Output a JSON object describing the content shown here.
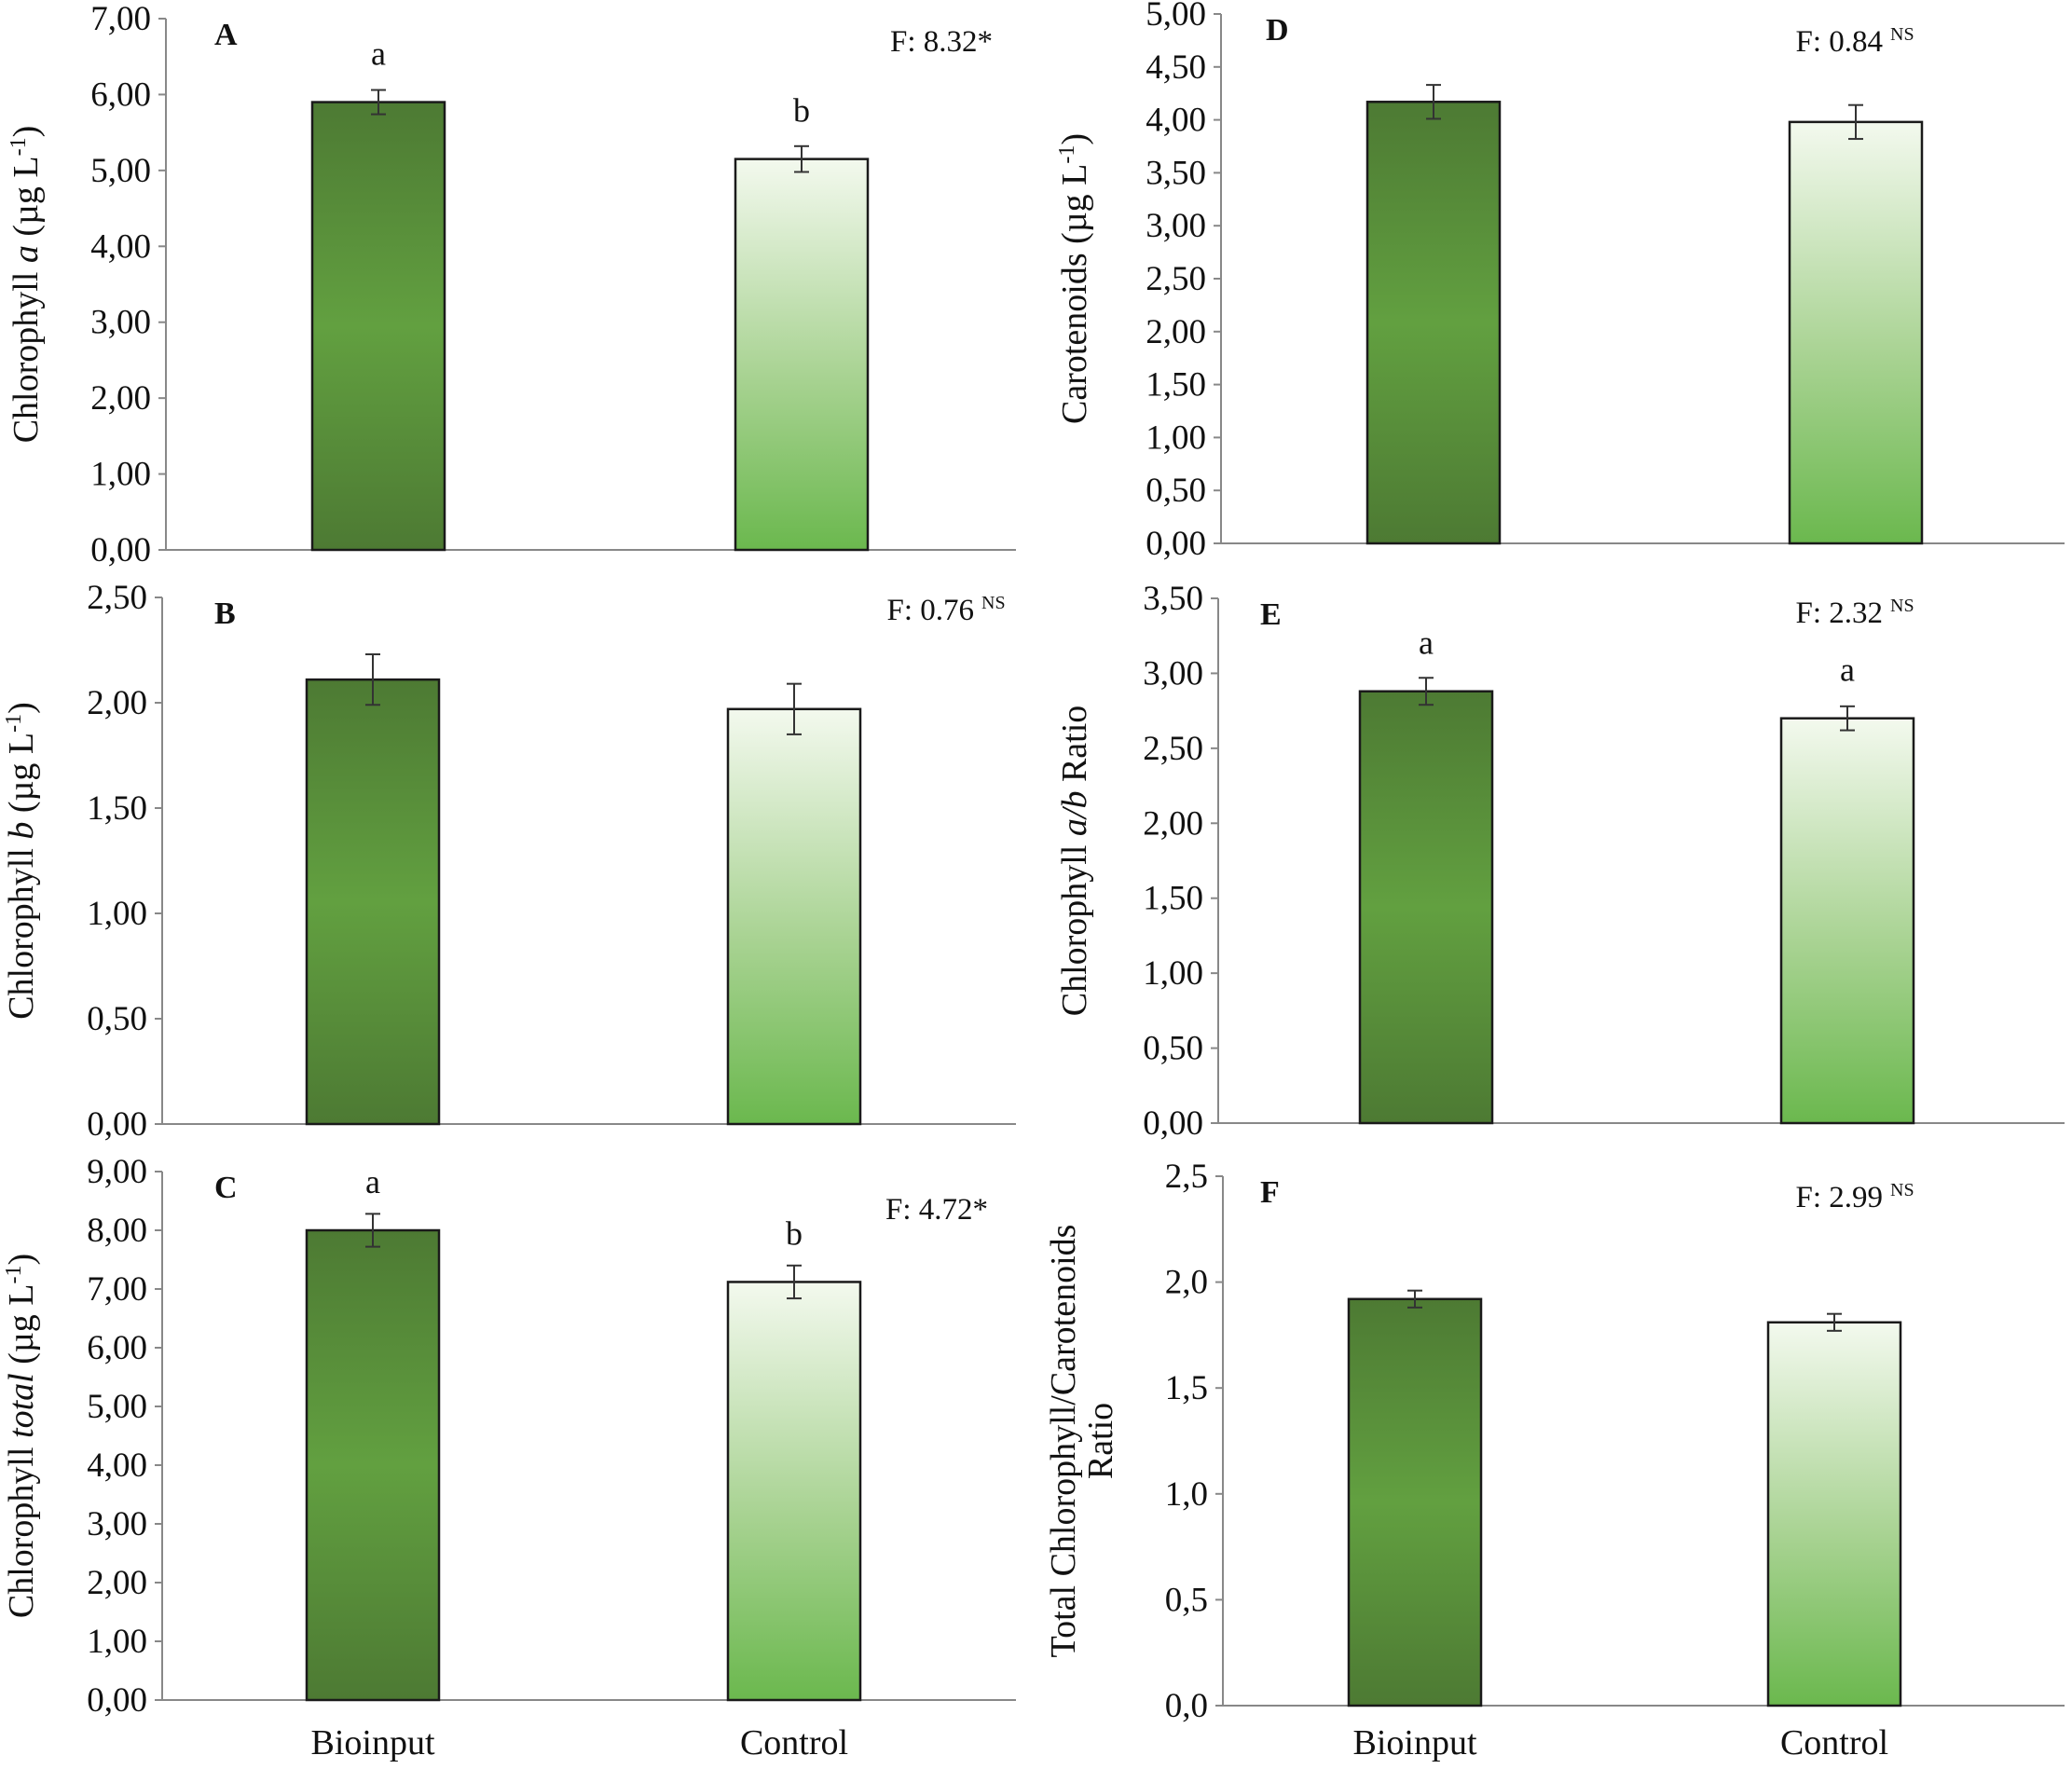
{
  "figure": {
    "categories": [
      "Bioinput",
      "Control"
    ],
    "colors": {
      "bioinput_gradient": [
        "#4d7a33",
        "#62a040",
        "#4d7a33"
      ],
      "control_gradient": [
        "#f3f9ee",
        "#a9d393",
        "#6bb84e"
      ],
      "bar_stroke": "#1a1a1a",
      "axis": "#888888"
    }
  },
  "chart_data": [
    {
      "id": "A",
      "type": "bar",
      "panel_label": "A",
      "ylabel_parts": [
        "Chlorophyll ",
        "a",
        " (µg L",
        "-1",
        ")"
      ],
      "yticks": [
        "0,00",
        "1,00",
        "2,00",
        "3,00",
        "4,00",
        "5,00",
        "6,00",
        "7,00"
      ],
      "ylim": [
        0,
        7
      ],
      "categories": [
        "Bioinput",
        "Control"
      ],
      "values": [
        5.9,
        5.15
      ],
      "errors": [
        0.16,
        0.17
      ],
      "letters": [
        "a",
        "b"
      ],
      "stat_text": "F: 8.32*",
      "stat_sup": ""
    },
    {
      "id": "B",
      "type": "bar",
      "panel_label": "B",
      "ylabel_parts": [
        "Chlorophyll ",
        "b",
        " (µg L",
        "-1",
        ")"
      ],
      "yticks": [
        "0,00",
        "0,50",
        "1,00",
        "1,50",
        "2,00",
        "2,50"
      ],
      "ylim": [
        0,
        2.5
      ],
      "categories": [
        "Bioinput",
        "Control"
      ],
      "values": [
        2.11,
        1.97
      ],
      "errors": [
        0.12,
        0.12
      ],
      "letters": [
        "",
        ""
      ],
      "stat_text": "F: 0.76",
      "stat_sup": "NS"
    },
    {
      "id": "C",
      "type": "bar",
      "panel_label": "C",
      "ylabel_parts": [
        "Chlorophyll ",
        "total",
        " (µg L",
        "-1",
        ")"
      ],
      "yticks": [
        "0,00",
        "1,00",
        "2,00",
        "3,00",
        "4,00",
        "5,00",
        "6,00",
        "7,00",
        "8,00",
        "9,00"
      ],
      "ylim": [
        0,
        9
      ],
      "categories": [
        "Bioinput",
        "Control"
      ],
      "values": [
        8.0,
        7.12
      ],
      "errors": [
        0.28,
        0.28
      ],
      "letters": [
        "a",
        "b"
      ],
      "stat_text": "F: 4.72*",
      "stat_sup": ""
    },
    {
      "id": "D",
      "type": "bar",
      "panel_label": "D",
      "ylabel_parts": [
        "Carotenoids (µg L",
        "-1",
        ")"
      ],
      "yticks": [
        "0,00",
        "0,50",
        "1,00",
        "1,50",
        "2,00",
        "2,50",
        "3,00",
        "3,50",
        "4,00",
        "4,50",
        "5,00"
      ],
      "ylim": [
        0,
        5
      ],
      "categories": [
        "Bioinput",
        "Control"
      ],
      "values": [
        4.17,
        3.98
      ],
      "errors": [
        0.16,
        0.16
      ],
      "letters": [
        "",
        ""
      ],
      "stat_text": "F: 0.84",
      "stat_sup": "NS"
    },
    {
      "id": "E",
      "type": "bar",
      "panel_label": "E",
      "ylabel_parts": [
        "Chlorophyll ",
        "a/b",
        " Ratio"
      ],
      "yticks": [
        "0,00",
        "0,50",
        "1,00",
        "1,50",
        "2,00",
        "2,50",
        "3,00",
        "3,50"
      ],
      "ylim": [
        0,
        3.5
      ],
      "categories": [
        "Bioinput",
        "Control"
      ],
      "values": [
        2.88,
        2.7
      ],
      "errors": [
        0.09,
        0.08
      ],
      "letters": [
        "a",
        "a"
      ],
      "stat_text": "F: 2.32",
      "stat_sup": "NS"
    },
    {
      "id": "F",
      "type": "bar",
      "panel_label": "F",
      "ylabel_parts": [
        "Total Chlorophyll/Carotenoids",
        "Ratio"
      ],
      "yticks": [
        "0,0",
        "0,5",
        "1,0",
        "1,5",
        "2,0",
        "2,5"
      ],
      "ylim": [
        0,
        2.5
      ],
      "categories": [
        "Bioinput",
        "Control"
      ],
      "values": [
        1.92,
        1.81
      ],
      "errors": [
        0.04,
        0.04
      ],
      "letters": [
        "",
        ""
      ],
      "stat_text": "F: 2.99",
      "stat_sup": "NS"
    }
  ]
}
